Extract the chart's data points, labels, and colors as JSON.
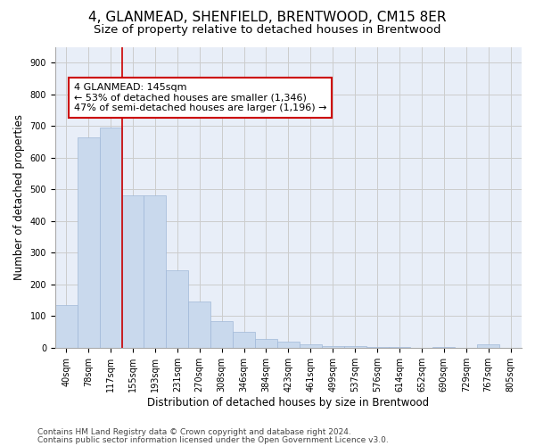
{
  "title": "4, GLANMEAD, SHENFIELD, BRENTWOOD, CM15 8ER",
  "subtitle": "Size of property relative to detached houses in Brentwood",
  "xlabel": "Distribution of detached houses by size in Brentwood",
  "ylabel": "Number of detached properties",
  "bar_labels": [
    "40sqm",
    "78sqm",
    "117sqm",
    "155sqm",
    "193sqm",
    "231sqm",
    "270sqm",
    "308sqm",
    "346sqm",
    "384sqm",
    "423sqm",
    "461sqm",
    "499sqm",
    "537sqm",
    "576sqm",
    "614sqm",
    "652sqm",
    "690sqm",
    "729sqm",
    "767sqm",
    "805sqm"
  ],
  "bar_values": [
    135,
    665,
    695,
    480,
    480,
    245,
    145,
    85,
    50,
    28,
    18,
    10,
    5,
    4,
    3,
    2,
    0,
    2,
    0,
    10,
    0
  ],
  "bar_color": "#c9d9ed",
  "bar_edgecolor": "#a0b8d8",
  "bar_width": 1.0,
  "annotation_box_text": "4 GLANMEAD: 145sqm\n← 53% of detached houses are smaller (1,346)\n47% of semi-detached houses are larger (1,196) →",
  "vline_x": 2.5,
  "vline_color": "#cc0000",
  "ylim": [
    0,
    950
  ],
  "yticks": [
    0,
    100,
    200,
    300,
    400,
    500,
    600,
    700,
    800,
    900
  ],
  "grid_color": "#cccccc",
  "bg_color": "#e8eef8",
  "footer_line1": "Contains HM Land Registry data © Crown copyright and database right 2024.",
  "footer_line2": "Contains public sector information licensed under the Open Government Licence v3.0.",
  "title_fontsize": 11,
  "subtitle_fontsize": 9.5,
  "axis_label_fontsize": 8.5,
  "tick_fontsize": 7,
  "annotation_fontsize": 8,
  "footer_fontsize": 6.5
}
